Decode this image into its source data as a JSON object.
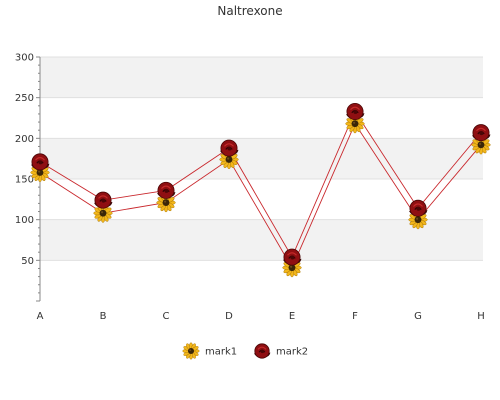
{
  "chart_data": {
    "type": "line",
    "title": "Naltrexone",
    "categories": [
      "A",
      "B",
      "C",
      "D",
      "E",
      "F",
      "G",
      "H"
    ],
    "series": [
      {
        "name": "mark1",
        "values": [
          158,
          108,
          121,
          174,
          41,
          218,
          100,
          192
        ],
        "color": "#c9282d",
        "marker": "sunflower-icon"
      },
      {
        "name": "mark2",
        "values": [
          171,
          124,
          136,
          188,
          54,
          233,
          114,
          207
        ],
        "color": "#c9282d",
        "marker": "rose-icon"
      }
    ],
    "ylim": [
      0,
      300
    ],
    "yticks": [
      50,
      100,
      150,
      200,
      250,
      300
    ],
    "xlabel": "",
    "ylabel": "",
    "grid": true,
    "grid_bands": [
      "#f2f2f2",
      "#ffffff"
    ],
    "legend": "bottom-center"
  }
}
